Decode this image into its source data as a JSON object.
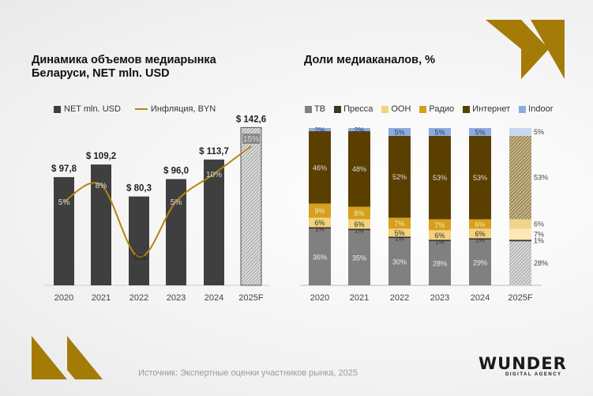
{
  "colors": {
    "accent": "#a57b08",
    "bar": "#3f3f3f",
    "line": "#b5850f"
  },
  "left_chart": {
    "title": "Динамика объемов медиарынка Беларуси, NET mln. USD"
  },
  "right_chart": {
    "title": "Доли медиаканалов, %"
  },
  "source": "Источник: Экспертные оценки участников рынка, 2025",
  "logo": {
    "word": "WUNDER",
    "sub": "DIGITAL AGENCY"
  },
  "chart_data": [
    {
      "type": "bar",
      "title": "Динамика объемов медиарынка Беларуси, NET mln. USD",
      "categories": [
        "2020",
        "2021",
        "2022",
        "2023",
        "2024",
        "2025F"
      ],
      "legend": [
        "NET mln. USD",
        "Инфляция, BYN"
      ],
      "legend_position": "top-left",
      "grid": false,
      "series": [
        {
          "name": "NET mln. USD",
          "type": "bar",
          "values": [
            97.8,
            109.2,
            80.3,
            96.0,
            113.7,
            142.6
          ],
          "labels": [
            "$ 97,8",
            "$ 109,2",
            "$ 80,3",
            "$ 96,0",
            "$ 113,7",
            "$ 142,6"
          ],
          "forecast_hatched": "2025F"
        },
        {
          "name": "Инфляция, BYN",
          "type": "line",
          "values": [
            5,
            8,
            -5,
            5,
            10,
            15
          ],
          "labels": [
            "5%",
            "8%",
            "-5%",
            "5%",
            "10%",
            "15%"
          ]
        }
      ]
    },
    {
      "type": "bar",
      "stacked": true,
      "title": "Доли медиаканалов, %",
      "categories": [
        "2020",
        "2021",
        "2022",
        "2023",
        "2024",
        "2025F"
      ],
      "legend_position": "top",
      "grid": false,
      "series": [
        {
          "name": "ТВ",
          "color": "#808080",
          "values": [
            36,
            35,
            30,
            28,
            29,
            28
          ]
        },
        {
          "name": "Пресса",
          "color": "#3b3628",
          "values": [
            1,
            1,
            1,
            1,
            1,
            1
          ]
        },
        {
          "name": "OOH",
          "color": "#f3d27c",
          "values": [
            6,
            6,
            5,
            6,
            6,
            7
          ]
        },
        {
          "name": "Радио",
          "color": "#d6a01d",
          "values": [
            9,
            8,
            7,
            7,
            6,
            6
          ]
        },
        {
          "name": "Интернет",
          "color": "#5a3f00",
          "values": [
            46,
            48,
            52,
            53,
            53,
            53
          ]
        },
        {
          "name": "Indoor",
          "color": "#8eaadc",
          "values": [
            2,
            2,
            5,
            5,
            5,
            5
          ]
        }
      ]
    }
  ]
}
